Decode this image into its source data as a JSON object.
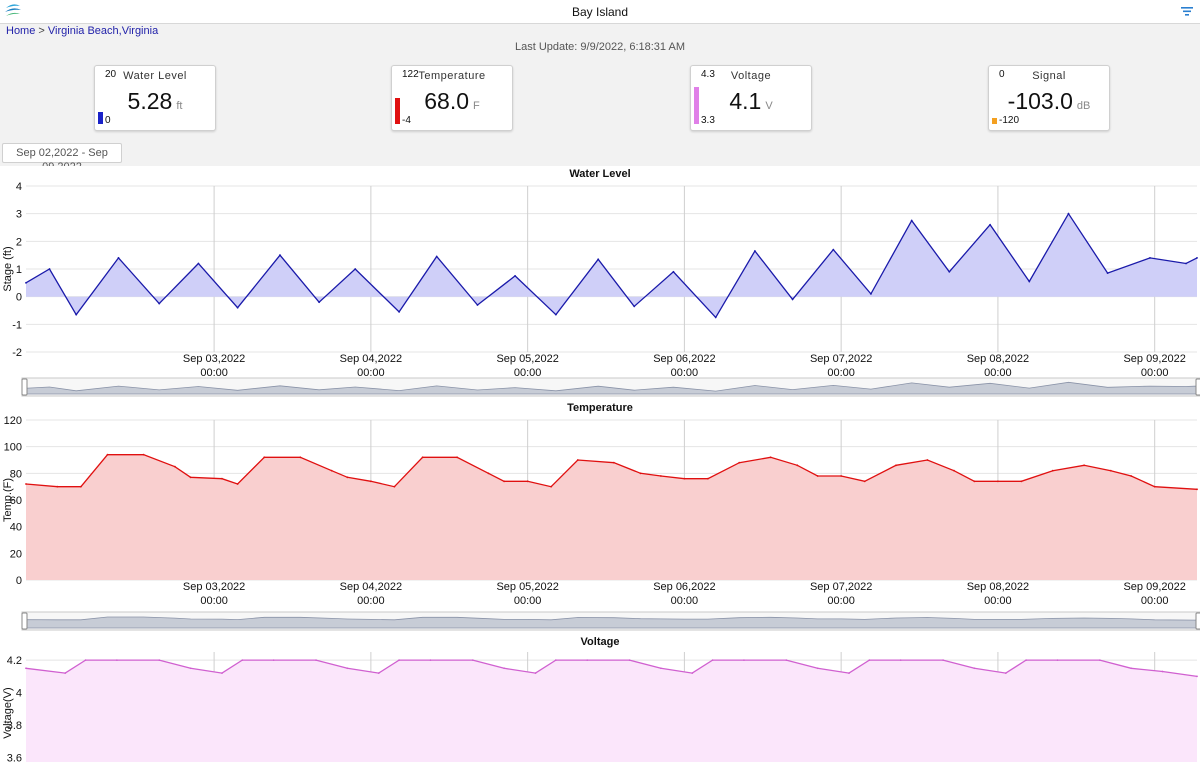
{
  "app": {
    "title": "Bay Island",
    "logo_icon": "app-logo-icon",
    "filter_icon": "filter-icon"
  },
  "breadcrumb": {
    "home": "Home",
    "separator": ">",
    "location": "Virginia Beach,Virginia"
  },
  "last_update": "Last Update: 9/9/2022, 6:18:31 AM",
  "cards": [
    {
      "name": "Water Level",
      "value": "5.28",
      "unit": "ft",
      "max": "20",
      "min": "0",
      "color": "#1a22c8",
      "fill_fraction": 0.26
    },
    {
      "name": "Temperature",
      "value": "68.0",
      "unit": "F",
      "max": "122",
      "min": "-4",
      "color": "#e01010",
      "fill_fraction": 0.57
    },
    {
      "name": "Voltage",
      "value": "4.1",
      "unit": "V",
      "max": "4.3",
      "min": "3.3",
      "color": "#e080e8",
      "fill_fraction": 0.8
    },
    {
      "name": "Signal",
      "value": "-103.0",
      "unit": "dB",
      "max": "0",
      "min": "-120",
      "color": "#f4a020",
      "fill_fraction": 0.14
    }
  ],
  "date_range": "Sep 02,2022 - Sep 09,2022",
  "x_ticks": [
    {
      "date": "Sep 03,2022",
      "time": "00:00",
      "day": 1
    },
    {
      "date": "Sep 04,2022",
      "time": "00:00",
      "day": 2
    },
    {
      "date": "Sep 05,2022",
      "time": "00:00",
      "day": 3
    },
    {
      "date": "Sep 06,2022",
      "time": "00:00",
      "day": 4
    },
    {
      "date": "Sep 07,2022",
      "time": "00:00",
      "day": 5
    },
    {
      "date": "Sep 08,2022",
      "time": "00:00",
      "day": 6
    },
    {
      "date": "Sep 09,2022",
      "time": "00:00",
      "day": 7
    }
  ],
  "chart_data": [
    {
      "type": "area",
      "title": "Water Level",
      "ylabel": "Stage (ft)",
      "ylim": [
        -2,
        4
      ],
      "yticks": [
        "-2",
        "-1",
        "0",
        "1",
        "2",
        "3",
        "4"
      ],
      "x_unit": "days since Sep 02,2022 00:00",
      "xlim": [
        -0.2,
        7.27
      ],
      "line_color": "#1a1aaa",
      "fill_color": "#cfcff8",
      "baseline": 0,
      "x": [
        -0.2,
        -0.05,
        0.12,
        0.39,
        0.65,
        0.9,
        1.15,
        1.42,
        1.67,
        1.9,
        2.18,
        2.42,
        2.68,
        2.92,
        3.18,
        3.45,
        3.68,
        3.93,
        4.2,
        4.45,
        4.69,
        4.95,
        5.19,
        5.45,
        5.69,
        5.95,
        6.2,
        6.45,
        6.7,
        6.97,
        7.2,
        7.27
      ],
      "y": [
        0.5,
        1.0,
        -0.65,
        1.4,
        -0.25,
        1.2,
        -0.4,
        1.5,
        -0.2,
        1.0,
        -0.55,
        1.45,
        -0.3,
        0.75,
        -0.65,
        1.35,
        -0.35,
        0.9,
        -0.75,
        1.65,
        -0.1,
        1.7,
        0.1,
        2.75,
        0.9,
        2.6,
        0.55,
        3.0,
        0.85,
        1.4,
        1.2,
        1.4
      ]
    },
    {
      "type": "area",
      "title": "Temperature",
      "ylabel": "Temp.(F)",
      "ylim": [
        0,
        120
      ],
      "yticks": [
        "0",
        "20",
        "40",
        "60",
        "80",
        "100",
        "120"
      ],
      "x_unit": "days since Sep 02,2022 00:00",
      "xlim": [
        -0.2,
        7.27
      ],
      "line_color": "#e01010",
      "fill_color": "#f9cfcf",
      "baseline": 0,
      "x": [
        -0.2,
        0.0,
        0.15,
        0.32,
        0.55,
        0.75,
        0.85,
        1.05,
        1.15,
        1.32,
        1.55,
        1.75,
        1.85,
        2.0,
        2.15,
        2.33,
        2.55,
        2.75,
        2.85,
        3.0,
        3.15,
        3.32,
        3.55,
        3.72,
        3.85,
        4.0,
        4.15,
        4.35,
        4.55,
        4.72,
        4.85,
        5.0,
        5.15,
        5.35,
        5.55,
        5.72,
        5.85,
        6.0,
        6.15,
        6.35,
        6.55,
        6.72,
        6.85,
        7.0,
        7.27
      ],
      "y": [
        72,
        70,
        70,
        94,
        94,
        85,
        77,
        76,
        72,
        92,
        92,
        82,
        77,
        74,
        70,
        92,
        92,
        80,
        74,
        74,
        70,
        90,
        88,
        80,
        78,
        76,
        76,
        88,
        92,
        86,
        78,
        78,
        74,
        86,
        90,
        82,
        74,
        74,
        74,
        82,
        86,
        82,
        78,
        70,
        68
      ]
    },
    {
      "type": "area",
      "title": "Voltage",
      "ylabel": "Voltage(V)",
      "ylim": [
        3.5,
        4.25
      ],
      "yticks": [
        "3.6",
        "3.8",
        "4",
        "4.2"
      ],
      "x_unit": "days since Sep 02,2022 00:00",
      "xlim": [
        -0.2,
        7.27
      ],
      "line_color": "#d060d0",
      "fill_color": "#fbe6fb",
      "baseline": 3.5,
      "x": [
        -0.2,
        0.05,
        0.18,
        0.38,
        0.65,
        0.85,
        1.05,
        1.18,
        1.38,
        1.65,
        1.85,
        2.05,
        2.18,
        2.38,
        2.65,
        2.85,
        3.05,
        3.18,
        3.38,
        3.65,
        3.85,
        4.05,
        4.18,
        4.38,
        4.65,
        4.85,
        5.05,
        5.18,
        5.38,
        5.65,
        5.85,
        6.05,
        6.18,
        6.38,
        6.65,
        6.85,
        7.05,
        7.27
      ],
      "y": [
        4.15,
        4.12,
        4.2,
        4.2,
        4.2,
        4.15,
        4.12,
        4.2,
        4.2,
        4.2,
        4.15,
        4.12,
        4.2,
        4.2,
        4.2,
        4.15,
        4.12,
        4.2,
        4.2,
        4.2,
        4.15,
        4.12,
        4.2,
        4.2,
        4.2,
        4.15,
        4.12,
        4.2,
        4.2,
        4.2,
        4.15,
        4.12,
        4.2,
        4.2,
        4.2,
        4.15,
        4.13,
        4.1
      ]
    }
  ]
}
